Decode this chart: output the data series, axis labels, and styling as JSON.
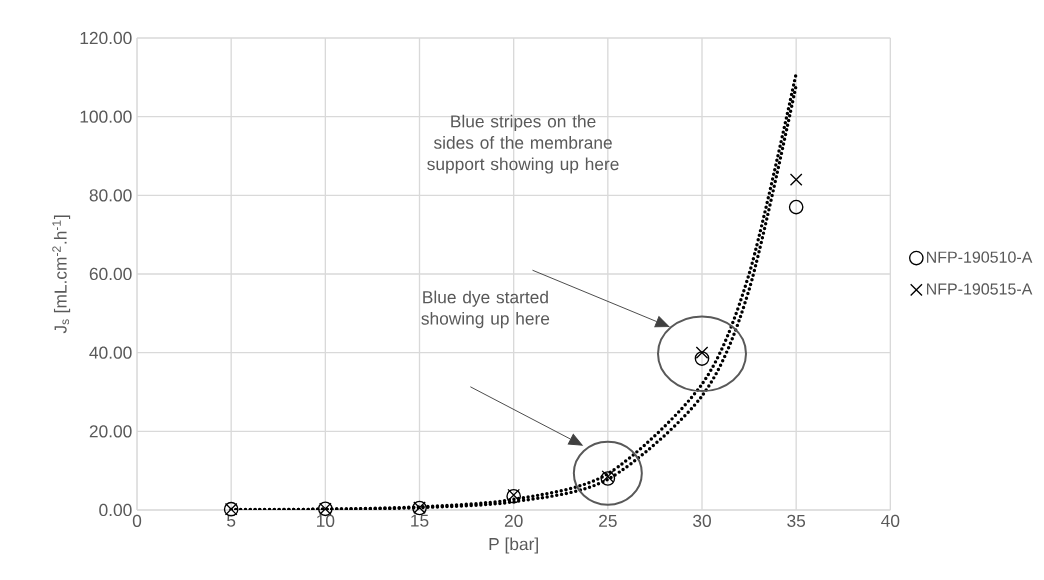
{
  "chart_data": {
    "type": "scatter",
    "xlabel": "P [bar]",
    "ylabel": "J$_{s}$ [mL.cm$^{-2}$.h$^{-1}$]",
    "xlim": [
      0,
      40
    ],
    "xticks": [
      0,
      5,
      10,
      15,
      20,
      25,
      30,
      35,
      40
    ],
    "ylim": [
      0,
      120
    ],
    "yticks": [
      {
        "value": 0,
        "label": "0.00"
      },
      {
        "value": 20,
        "label": "20.00"
      },
      {
        "value": 40,
        "label": "40.00"
      },
      {
        "value": 60,
        "label": "60.00"
      },
      {
        "value": 80,
        "label": "80.00"
      },
      {
        "value": 100,
        "label": "100.00"
      },
      {
        "value": 120,
        "label": "120.00"
      }
    ],
    "grid": true,
    "legend": "right",
    "series": [
      {
        "name": "NFP-190510-A",
        "marker": "circle",
        "color": "#000000",
        "x": [
          5,
          10,
          15,
          20,
          25,
          30,
          35
        ],
        "values": [
          0.2,
          0.3,
          0.5,
          3.5,
          8,
          38.5,
          77
        ]
      },
      {
        "name": "NFP-190515-A",
        "marker": "cross",
        "color": "#000000",
        "x": [
          5,
          10,
          15,
          20,
          25,
          30,
          35
        ],
        "values": [
          0.2,
          0.3,
          0.6,
          3.8,
          8.5,
          40,
          84
        ]
      },
      {
        "type": "line",
        "marker": "none",
        "line_style": "dotted",
        "color": "#000000",
        "x": [
          5,
          10,
          15,
          20,
          25,
          30,
          32.5,
          35
        ],
        "values": [
          0.1,
          0.2,
          0.8,
          2.7,
          9.2,
          32,
          60,
          111
        ]
      },
      {
        "type": "line",
        "marker": "none",
        "line_style": "dotted",
        "color": "#000000",
        "x": [
          5,
          10,
          15,
          20,
          25,
          30,
          32.5,
          35
        ],
        "values": [
          0,
          0.2,
          0.6,
          2.1,
          7.8,
          29,
          56,
          108
        ]
      }
    ],
    "annotations": [
      "Blue dye started showing up here",
      "Blue stripes on the sides of the membrane support showing up here"
    ]
  }
}
